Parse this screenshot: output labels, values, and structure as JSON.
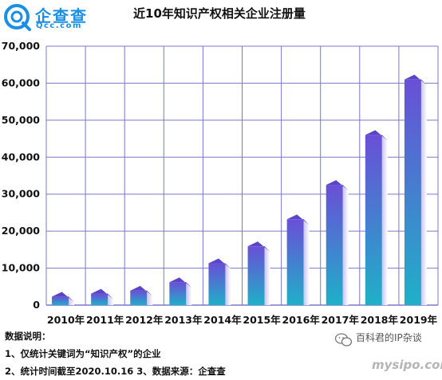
{
  "brand": {
    "name_cn": "企查查",
    "name_en": "Qcc.com",
    "color": "#1a8fe6"
  },
  "chart_data": {
    "type": "bar",
    "title": "近10年知识产权相关企业注册量",
    "categories": [
      "2010年",
      "2011年",
      "2012年",
      "2013年",
      "2014年",
      "2015年",
      "2016年",
      "2017年",
      "2018年",
      "2019年"
    ],
    "values": [
      2300,
      3100,
      3900,
      6200,
      11300,
      15900,
      23200,
      32500,
      46000,
      61000
    ],
    "ylim": [
      0,
      70000
    ],
    "yticks": [
      0,
      10000,
      20000,
      30000,
      40000,
      50000,
      60000,
      70000
    ],
    "ytick_labels": [
      "0",
      "10,000",
      "20,000",
      "30,000",
      "40,000",
      "50,000",
      "60,000",
      "70,000"
    ],
    "grid": true,
    "colors": {
      "bar_top": "#6a4fd6",
      "bar_bottom": "#1fb0c8",
      "grid": "#7a78c8"
    }
  },
  "notes": {
    "heading": "数据说明：",
    "line1": "1、仅统计关键词为“知识产权”的企业",
    "line2": "2、统计时间截至2020.10.16  3、数据来源：企查查"
  },
  "watermark": {
    "line1": "百科君的IP杂谈",
    "line2": "mysipo.com"
  }
}
